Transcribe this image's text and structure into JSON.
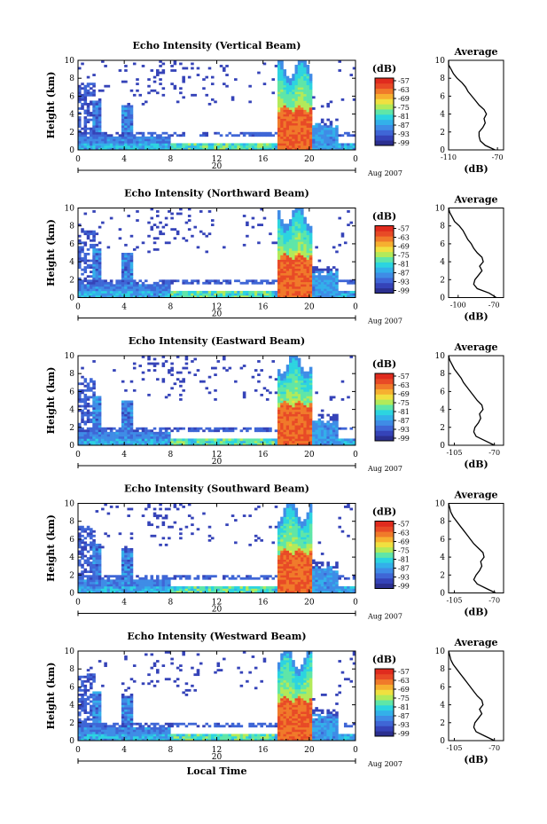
{
  "colors": {
    "colorbar": [
      "#2b2f8f",
      "#3543b8",
      "#3f66d6",
      "#3f8ce6",
      "#33b0ea",
      "#2cd4e0",
      "#5fe6a8",
      "#b2ea5a",
      "#f0e040",
      "#f6b030",
      "#f07a2a",
      "#e84a26",
      "#e02b1e"
    ],
    "axis": "#000000",
    "background": "#ffffff"
  },
  "chart_data": [
    {
      "type": "heatmap",
      "title": "Echo Intensity (Vertical Beam)",
      "ylabel": "Height (km)",
      "ylim": [
        0,
        10
      ],
      "yticks": [
        "0",
        "2",
        "4",
        "6",
        "8",
        "10"
      ],
      "xlim": [
        0,
        24
      ],
      "xticks": [
        "0",
        "4",
        "8",
        "12",
        "16",
        "20",
        "0"
      ],
      "date_label": "20",
      "month_label": "Aug 2007",
      "colorbar": {
        "label": "(dB)",
        "ticks": [
          "-57",
          "-63",
          "-69",
          "-75",
          "-81",
          "-87",
          "-93",
          "-99"
        ]
      },
      "profile": {
        "title": "Average",
        "xlabel": "(dB)",
        "xticks": [
          "-110",
          "-70"
        ],
        "xlim": [
          -110,
          -65
        ],
        "ylim": [
          0,
          10
        ],
        "yticks": [
          "0",
          "2",
          "4",
          "6",
          "8",
          "10"
        ],
        "height": [
          0,
          0.5,
          1,
          1.5,
          2,
          2.5,
          3,
          3.5,
          4,
          4.5,
          5,
          5.5,
          6,
          6.5,
          7,
          7.5,
          8,
          8.5,
          9,
          9.5,
          10
        ],
        "db": [
          -72,
          -80,
          -84,
          -85,
          -85,
          -82,
          -80,
          -81,
          -79,
          -81,
          -85,
          -88,
          -91,
          -94,
          -96,
          -99,
          -103,
          -106,
          -108,
          -110,
          -110
        ]
      }
    },
    {
      "type": "heatmap",
      "title": "Echo Intensity (Northward Beam)",
      "ylabel": "Height (km)",
      "ylim": [
        0,
        10
      ],
      "yticks": [
        "0",
        "2",
        "4",
        "6",
        "8",
        "10"
      ],
      "xlim": [
        0,
        24
      ],
      "xticks": [
        "0",
        "4",
        "8",
        "12",
        "16",
        "20",
        "0"
      ],
      "date_label": "20",
      "month_label": "Aug 2007",
      "colorbar": {
        "label": "(dB)",
        "ticks": [
          "-57",
          "-63",
          "-69",
          "-75",
          "-81",
          "-87",
          "-93",
          "-99"
        ]
      },
      "profile": {
        "title": "Average",
        "xlabel": "(dB)",
        "xticks": [
          "-100",
          "-70"
        ],
        "xlim": [
          -108,
          -62
        ],
        "ylim": [
          0,
          10
        ],
        "yticks": [
          "0",
          "2",
          "4",
          "6",
          "8",
          "10"
        ],
        "height": [
          0,
          0.5,
          1,
          1.5,
          2,
          2.5,
          3,
          3.5,
          4,
          4.5,
          5,
          5.5,
          6,
          6.5,
          7,
          7.5,
          8,
          8.5,
          9,
          9.5,
          10
        ],
        "db": [
          -68,
          -74,
          -84,
          -87,
          -86,
          -83,
          -80,
          -82,
          -79,
          -80,
          -84,
          -87,
          -89,
          -92,
          -94,
          -96,
          -99,
          -103,
          -105,
          -107,
          -108
        ]
      }
    },
    {
      "type": "heatmap",
      "title": "Echo Intensity (Eastward Beam)",
      "ylabel": "Height (km)",
      "ylim": [
        0,
        10
      ],
      "yticks": [
        "0",
        "2",
        "4",
        "6",
        "8",
        "10"
      ],
      "xlim": [
        0,
        24
      ],
      "xticks": [
        "0",
        "4",
        "8",
        "12",
        "16",
        "20",
        "0"
      ],
      "date_label": "20",
      "month_label": "Aug 2007",
      "colorbar": {
        "label": "(dB)",
        "ticks": [
          "-57",
          "-63",
          "-69",
          "-75",
          "-81",
          "-87",
          "-93",
          "-99"
        ]
      },
      "profile": {
        "title": "Average",
        "xlabel": "(dB)",
        "xticks": [
          "-105",
          "-70"
        ],
        "xlim": [
          -110,
          -62
        ],
        "ylim": [
          0,
          10
        ],
        "yticks": [
          "0",
          "2",
          "4",
          "6",
          "8",
          "10"
        ],
        "height": [
          0,
          0.5,
          1,
          1.5,
          2,
          2.5,
          3,
          3.5,
          4,
          4.5,
          5,
          5.5,
          6,
          6.5,
          7,
          7.5,
          8,
          8.5,
          9,
          9.5,
          10
        ],
        "db": [
          -70,
          -78,
          -86,
          -88,
          -87,
          -84,
          -82,
          -83,
          -80,
          -81,
          -85,
          -88,
          -91,
          -94,
          -97,
          -99,
          -102,
          -105,
          -107,
          -109,
          -110
        ]
      }
    },
    {
      "type": "heatmap",
      "title": "Echo Intensity (Southward Beam)",
      "ylabel": "Height (km)",
      "ylim": [
        0,
        10
      ],
      "yticks": [
        "0",
        "2",
        "4",
        "6",
        "8",
        "10"
      ],
      "xlim": [
        0,
        24
      ],
      "xticks": [
        "0",
        "4",
        "8",
        "12",
        "16",
        "20",
        "0"
      ],
      "date_label": "20",
      "month_label": "Aug 2007",
      "colorbar": {
        "label": "(dB)",
        "ticks": [
          "-57",
          "-63",
          "-69",
          "-75",
          "-81",
          "-87",
          "-93",
          "-99"
        ]
      },
      "profile": {
        "title": "Average",
        "xlabel": "(dB)",
        "xticks": [
          "-105",
          "-70"
        ],
        "xlim": [
          -110,
          -62
        ],
        "ylim": [
          0,
          10
        ],
        "yticks": [
          "0",
          "2",
          "4",
          "6",
          "8",
          "10"
        ],
        "height": [
          0,
          0.5,
          1,
          1.5,
          2,
          2.5,
          3,
          3.5,
          4,
          4.5,
          5,
          5.5,
          6,
          6.5,
          7,
          7.5,
          8,
          8.5,
          9,
          9.5,
          10
        ],
        "db": [
          -69,
          -77,
          -85,
          -88,
          -86,
          -83,
          -81,
          -82,
          -79,
          -80,
          -84,
          -88,
          -91,
          -94,
          -97,
          -100,
          -103,
          -106,
          -108,
          -109,
          -110
        ]
      }
    },
    {
      "type": "heatmap",
      "title": "Echo Intensity (Westward Beam)",
      "ylabel": "Height (km)",
      "ylim": [
        0,
        10
      ],
      "yticks": [
        "0",
        "2",
        "4",
        "6",
        "8",
        "10"
      ],
      "xlim": [
        0,
        24
      ],
      "xticks": [
        "0",
        "4",
        "8",
        "12",
        "16",
        "20",
        "0"
      ],
      "date_label": "20",
      "month_label": "Aug 2007",
      "xlabel": "Local Time",
      "colorbar": {
        "label": "(dB)",
        "ticks": [
          "-57",
          "-63",
          "-69",
          "-75",
          "-81",
          "-87",
          "-93",
          "-99"
        ]
      },
      "profile": {
        "title": "Average",
        "xlabel": "(dB)",
        "xticks": [
          "-105",
          "-70"
        ],
        "xlim": [
          -110,
          -62
        ],
        "ylim": [
          0,
          10
        ],
        "yticks": [
          "0",
          "2",
          "4",
          "6",
          "8",
          "10"
        ],
        "height": [
          0,
          0.5,
          1,
          1.5,
          2,
          2.5,
          3,
          3.5,
          4,
          4.5,
          5,
          5.5,
          6,
          6.5,
          7,
          7.5,
          8,
          8.5,
          9,
          9.5,
          10
        ],
        "db": [
          -70,
          -78,
          -86,
          -88,
          -87,
          -84,
          -81,
          -83,
          -80,
          -81,
          -85,
          -88,
          -91,
          -94,
          -97,
          -100,
          -103,
          -106,
          -108,
          -109,
          -110
        ]
      }
    }
  ]
}
